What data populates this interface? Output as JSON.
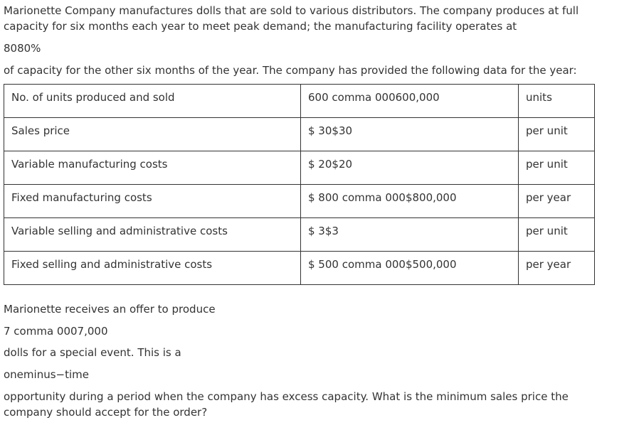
{
  "paragraphs_before": [
    "Marionette Company manufactures dolls that are sold to various distributors. The company produces at full capacity for six months each year to meet peak demand; the manufacturing facility operates at",
    "8080%",
    "of capacity for the other six months of the year. The company has provided the following data for the year:"
  ],
  "table": {
    "rows": [
      [
        "No. of units produced and sold",
        "600 comma 000600,000",
        "units"
      ],
      [
        "Sales price",
        "$ 30$30",
        "per unit"
      ],
      [
        "Variable manufacturing costs",
        "$ 20$20",
        "per unit"
      ],
      [
        "Fixed manufacturing costs",
        "$ 800 comma 000$800,000",
        "per year"
      ],
      [
        "Variable selling and administrative costs",
        "$ 3$3",
        "per unit"
      ],
      [
        "Fixed selling and administrative costs",
        "$ 500 comma 000$500,000",
        "per year"
      ]
    ]
  },
  "paragraphs_after": [
    "Marionette receives an offer to produce",
    "7 comma 0007,000",
    "dolls for a special event. This is a",
    "oneminus−time",
    "opportunity during a period when the company has excess capacity. What is the minimum sales price the company should accept for the order?"
  ]
}
